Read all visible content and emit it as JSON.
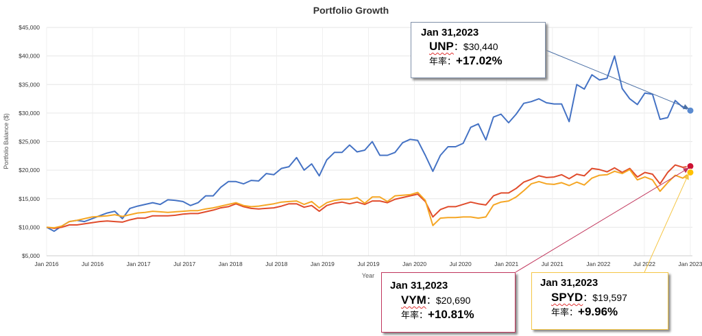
{
  "chart_data": {
    "type": "line",
    "title": "Portfolio Growth",
    "xlabel": "Year",
    "ylabel": "Portfolio Balance ($)",
    "ylim": [
      5000,
      45000
    ],
    "yticks": [
      "$5,000",
      "$10,000",
      "$15,000",
      "$20,000",
      "$25,000",
      "$30,000",
      "$35,000",
      "$40,000",
      "$45,000"
    ],
    "xticks": [
      "Jan 2016",
      "Jul 2016",
      "Jan 2017",
      "Jul 2017",
      "Jan 2018",
      "Jul 2018",
      "Jan 2019",
      "Jul 2019",
      "Jan 2020",
      "Jul 2020",
      "Jan 2021",
      "Jul 2021",
      "Jan 2022",
      "Jul 2022",
      "Jan 2023"
    ],
    "grid": true,
    "series": [
      {
        "name": "UNP",
        "color": "#4472c4",
        "values": [
          10000,
          9300,
          10200,
          11000,
          11200,
          11000,
          11500,
          12000,
          12500,
          12800,
          11500,
          13300,
          13700,
          14000,
          14300,
          14000,
          14800,
          14700,
          14500,
          13800,
          14300,
          15500,
          15500,
          17000,
          18000,
          18000,
          17600,
          18200,
          18100,
          19400,
          19200,
          20300,
          20600,
          22200,
          20000,
          21100,
          19000,
          21800,
          23100,
          23100,
          24400,
          23200,
          23500,
          25000,
          22600,
          22600,
          23100,
          24800,
          25400,
          25200,
          22600,
          19800,
          22600,
          24100,
          24100,
          24700,
          27500,
          28100,
          25300,
          29300,
          29800,
          28300,
          29800,
          31700,
          32000,
          32500,
          31800,
          31600,
          31600,
          28500,
          35000,
          34200,
          36700,
          35800,
          36100,
          40000,
          34300,
          32500,
          31500,
          33500,
          33300,
          28900,
          29200,
          32200,
          31000,
          30440
        ]
      },
      {
        "name": "VYM",
        "color": "#e04b2b",
        "values": [
          10000,
          9800,
          10000,
          10400,
          10400,
          10600,
          10800,
          11000,
          11100,
          11000,
          10900,
          11300,
          11600,
          11600,
          12000,
          12000,
          12000,
          12100,
          12300,
          12400,
          12400,
          12700,
          13000,
          13400,
          13600,
          14100,
          13600,
          13300,
          13200,
          13300,
          13400,
          13700,
          14100,
          14100,
          13500,
          13800,
          12800,
          13800,
          14200,
          14400,
          14100,
          14400,
          14000,
          14600,
          14600,
          14300,
          14900,
          15200,
          15500,
          15800,
          14500,
          11800,
          13100,
          13600,
          13600,
          14000,
          14400,
          14100,
          13900,
          15500,
          16000,
          16000,
          16800,
          17900,
          18400,
          19000,
          18700,
          18800,
          19200,
          18500,
          19300,
          19000,
          20300,
          20100,
          19700,
          20400,
          19600,
          20300,
          18800,
          19600,
          19300,
          17600,
          19600,
          20900,
          20500,
          20690
        ]
      },
      {
        "name": "SPYD",
        "color": "#f5a623",
        "values": [
          10000,
          9900,
          10200,
          11000,
          11200,
          11500,
          11800,
          11900,
          12000,
          12200,
          11900,
          12200,
          12500,
          12600,
          12800,
          12700,
          12600,
          12700,
          12800,
          12900,
          12900,
          13200,
          13400,
          13700,
          14000,
          14300,
          13800,
          13600,
          13700,
          13900,
          14100,
          14400,
          14500,
          14600,
          14000,
          14500,
          13400,
          14300,
          14700,
          14900,
          14900,
          15200,
          14200,
          15300,
          15300,
          14500,
          15500,
          15600,
          15700,
          16100,
          14700,
          10300,
          11600,
          11700,
          11700,
          11800,
          11800,
          11600,
          11800,
          13900,
          14400,
          14600,
          15300,
          16400,
          17600,
          18000,
          17600,
          17500,
          17800,
          17300,
          17900,
          17400,
          18600,
          19100,
          19200,
          19800,
          19400,
          20100,
          18300,
          18800,
          18300,
          16300,
          17800,
          19100,
          18600,
          19597
        ]
      }
    ],
    "callouts": [
      {
        "date": "Jan 31,2023",
        "ticker": "UNP",
        "sep": "：",
        "value": "$30,440",
        "annual_label": "年率：",
        "annual": "+17.02%",
        "color": "#4472c4"
      },
      {
        "date": "Jan 31,2023",
        "ticker": "VYM",
        "sep": "：",
        "value": "$20,690",
        "annual_label": "年率：",
        "annual": "+10.81%",
        "color": "#c0335a"
      },
      {
        "date": "Jan 31,2023",
        "ticker": "SPYD",
        "sep": "：",
        "value": "$19,597",
        "annual_label": "年率：",
        "annual": "+9.96%",
        "color": "#f5c542"
      }
    ]
  }
}
